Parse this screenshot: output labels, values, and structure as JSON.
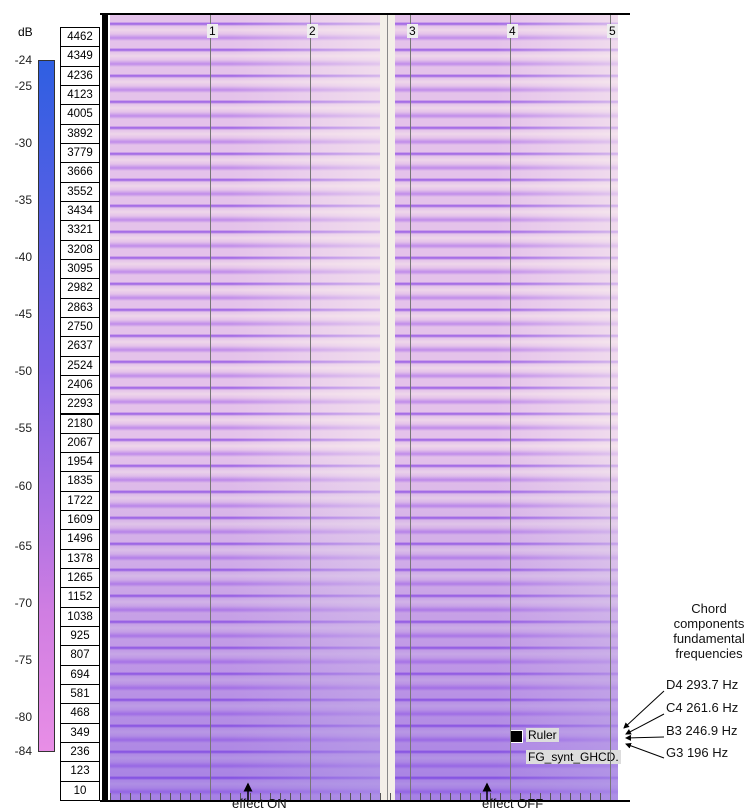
{
  "db_scale": {
    "unit": "dB",
    "labels": [
      "-24",
      "-25",
      "-30",
      "-35",
      "-40",
      "-45",
      "-50",
      "-55",
      "-60",
      "-65",
      "-70",
      "-75",
      "-80",
      "-84"
    ]
  },
  "frequency_labels": [
    "4462",
    "4349",
    "4236",
    "4123",
    "4005",
    "3892",
    "3779",
    "3666",
    "3552",
    "3434",
    "3321",
    "3208",
    "3095",
    "2982",
    "2863",
    "2750",
    "2637",
    "2524",
    "2406",
    "2293",
    "2180",
    "2067",
    "1954",
    "1835",
    "1722",
    "1609",
    "1496",
    "1378",
    "1265",
    "1152",
    "1038",
    "925",
    "807",
    "694",
    "581",
    "468",
    "349",
    "236",
    "123",
    "10"
  ],
  "time_labels": [
    "1",
    "2",
    "3",
    "4",
    "5"
  ],
  "track": {
    "ruler": "Ruler",
    "clip_name": "FG_synt_GHCD."
  },
  "annotations": {
    "title": "Chord components fundamental frequencies",
    "notes": [
      "D4 293.7 Hz",
      "C4 261.6 Hz",
      "B3 246.9 Hz",
      "G3 196 Hz"
    ],
    "effect_on": "effect ON",
    "effect_off": "effect OFF"
  }
}
